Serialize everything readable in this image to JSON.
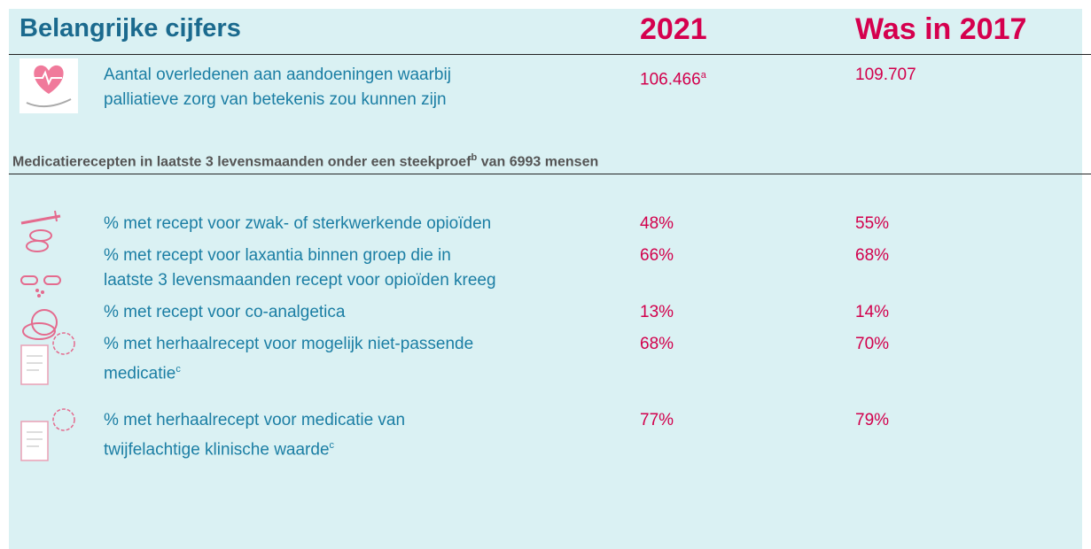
{
  "header": {
    "title": "Belangrijke cijfers",
    "col1": "2021",
    "col2": "Was in 2017"
  },
  "intro_row": {
    "label_lines": [
      "Aantal overledenen aan aandoeningen waarbij",
      "palliatieve zorg van betekenis zou kunnen zijn"
    ],
    "value_2021": "106.466",
    "value_2021_note": "a",
    "value_2017": "109.707"
  },
  "section": {
    "text_before": "Medicatierecepten in laatste 3 levensmaanden onder een steekproef",
    "note": "b",
    "text_after": " van 6993 mensen"
  },
  "rows": [
    {
      "label_lines": [
        "% met recept voor zwak- of sterkwerkende opioïden"
      ],
      "value_2021": "48%",
      "value_2017": "55%"
    },
    {
      "label_lines": [
        "% met recept voor laxantia binnen groep die in",
        "laatste 3 levensmaanden recept voor opioïden kreeg"
      ],
      "value_2021": "66%",
      "value_2017": "68%"
    },
    {
      "label_lines": [
        "% met recept voor co-analgetica"
      ],
      "value_2021": "13%",
      "value_2017": "14%"
    },
    {
      "label_lines": [
        "% met herhaalrecept voor mogelijk niet-passende",
        "medicatie"
      ],
      "note": "c",
      "value_2021": "68%",
      "value_2017": "70%"
    },
    {
      "label_lines": [
        "% met herhaalrecept voor medicatie van",
        "twijfelachtige klinische waarde"
      ],
      "note": "c",
      "value_2021": "77%",
      "value_2017": "79%"
    }
  ]
}
